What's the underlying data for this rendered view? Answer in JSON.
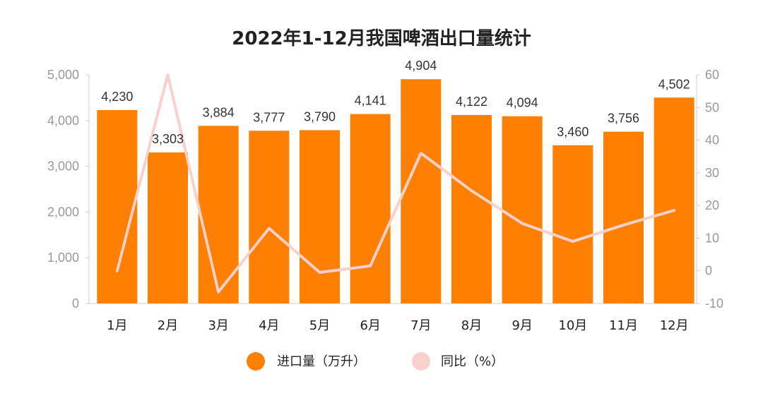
{
  "chart_data": {
    "type": "bar",
    "title": "2022年1-12月我国啤酒出口量统计",
    "categories": [
      "1月",
      "2月",
      "3月",
      "4月",
      "5月",
      "6月",
      "7月",
      "8月",
      "9月",
      "10月",
      "11月",
      "12月"
    ],
    "series": [
      {
        "name": "进口量（万升）",
        "type": "bar",
        "axis": "left",
        "color": "#FF7F00",
        "values": [
          4230,
          3303,
          3884,
          3777,
          3790,
          4141,
          4904,
          4122,
          4094,
          3460,
          3756,
          4502
        ],
        "labels": [
          "4,230",
          "3,303",
          "3,884",
          "3,777",
          "3,790",
          "4,141",
          "4,904",
          "4,122",
          "4,094",
          "3,460",
          "3,756",
          "4,502"
        ]
      },
      {
        "name": "同比（%）",
        "type": "line",
        "axis": "right",
        "color": "#F9D0CC",
        "values": [
          0,
          60,
          -6.5,
          13,
          -0.5,
          1.5,
          36,
          24.5,
          14.5,
          9,
          14,
          18.5
        ]
      }
    ],
    "y_left": {
      "min": 0,
      "max": 5000,
      "ticks": [
        "0",
        "1,000",
        "2,000",
        "3,000",
        "4,000",
        "5,000"
      ],
      "tick_values": [
        0,
        1000,
        2000,
        3000,
        4000,
        5000
      ]
    },
    "y_right": {
      "min": -10,
      "max": 60,
      "ticks": [
        "-10",
        "0",
        "10",
        "20",
        "30",
        "40",
        "50",
        "60"
      ],
      "tick_values": [
        -10,
        0,
        10,
        20,
        30,
        40,
        50,
        60
      ]
    },
    "legend": [
      "进口量（万升）",
      "同比（%）"
    ],
    "grid": false,
    "legend_position": "bottom-center"
  }
}
